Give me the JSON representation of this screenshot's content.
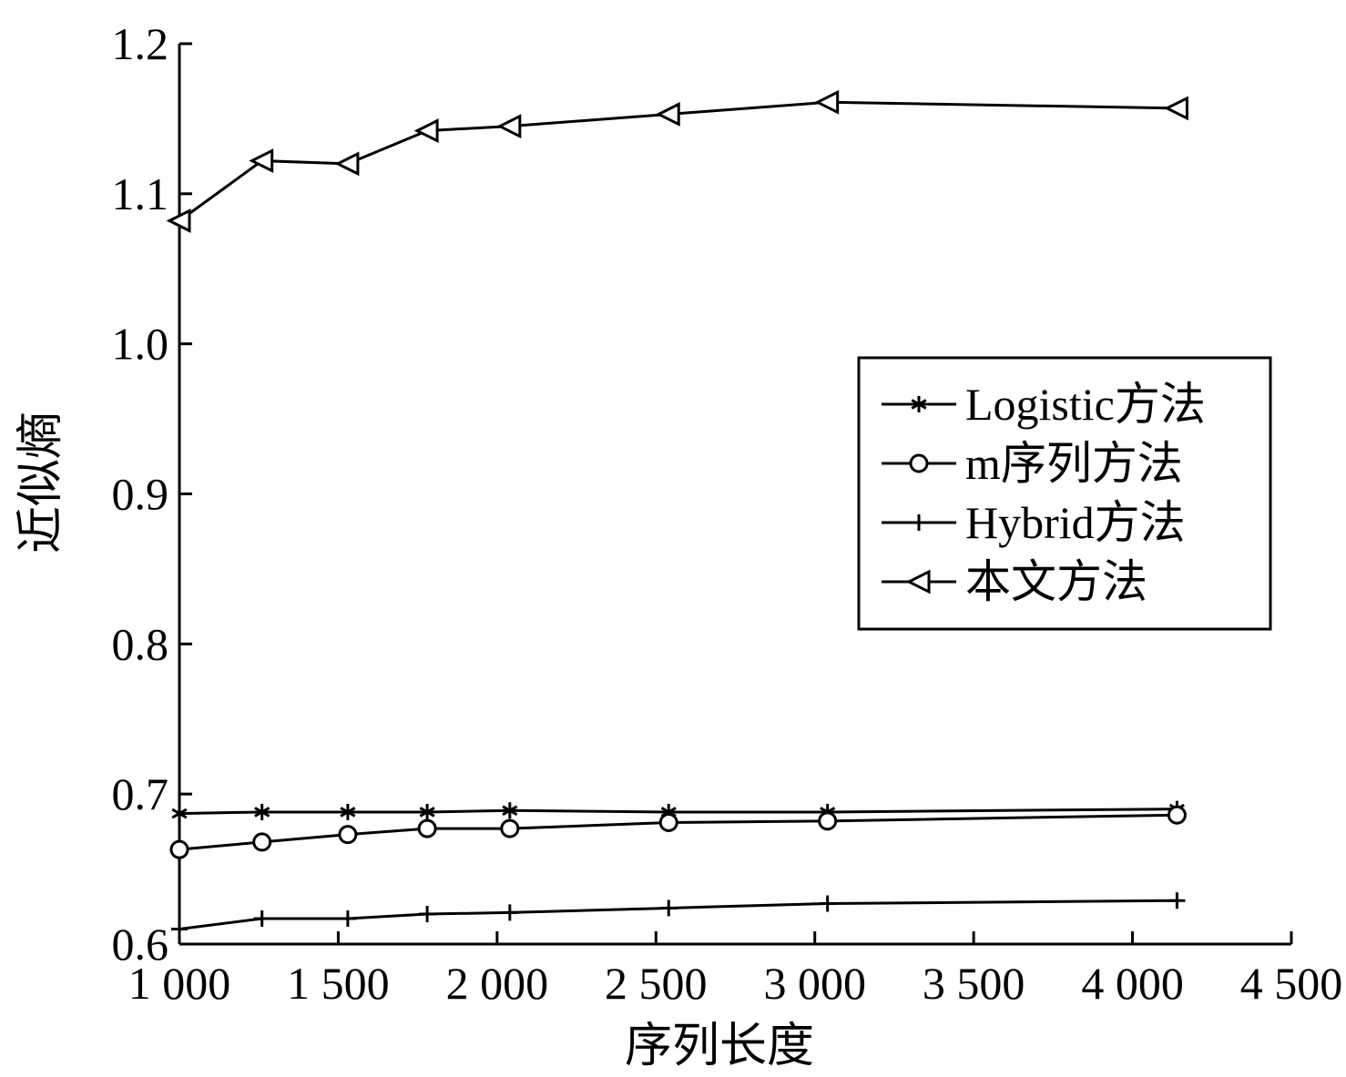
{
  "chart_data": {
    "type": "line",
    "xlabel": "序列长度",
    "ylabel": "近似熵",
    "xlim": [
      1000,
      4500
    ],
    "ylim": [
      0.6,
      1.2
    ],
    "x_ticks": [
      1000,
      1500,
      2000,
      2500,
      3000,
      3500,
      4000,
      4500
    ],
    "x_tick_labels": [
      "1 000",
      "1 500",
      "2 000",
      "2 500",
      "3 000",
      "3 500",
      "4 000",
      "4 500"
    ],
    "y_ticks": [
      0.6,
      0.7,
      0.8,
      0.9,
      1.0,
      1.1,
      1.2
    ],
    "y_tick_labels": [
      "0.6",
      "0.7",
      "0.8",
      "0.9",
      "1.0",
      "1.1",
      "1.2"
    ],
    "x": [
      1000,
      1260,
      1530,
      1780,
      2040,
      2540,
      3040,
      4140
    ],
    "legend_position": "center-right",
    "grid": false,
    "series": [
      {
        "name": "Logistic方法",
        "marker": "asterisk",
        "values": [
          0.687,
          0.688,
          0.688,
          0.688,
          0.689,
          0.688,
          0.688,
          0.69
        ]
      },
      {
        "name": "m序列方法",
        "marker": "circle",
        "values": [
          0.663,
          0.668,
          0.673,
          0.677,
          0.677,
          0.681,
          0.682,
          0.686
        ]
      },
      {
        "name": "Hybrid方法",
        "marker": "plus",
        "values": [
          0.61,
          0.617,
          0.617,
          0.62,
          0.621,
          0.624,
          0.627,
          0.629
        ]
      },
      {
        "name": "本文方法",
        "marker": "triangle-left",
        "values": [
          1.082,
          1.122,
          1.12,
          1.142,
          1.145,
          1.153,
          1.161,
          1.157
        ]
      }
    ]
  }
}
